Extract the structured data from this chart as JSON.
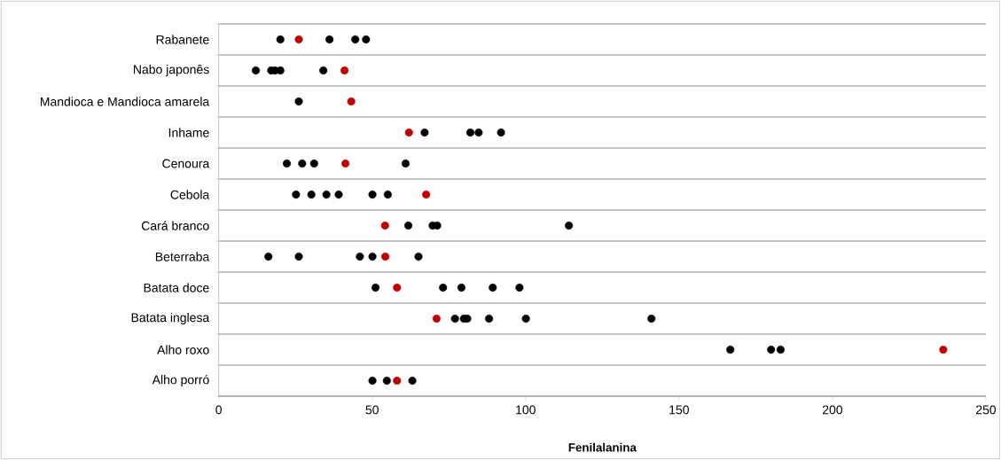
{
  "chart_data": {
    "type": "scatter",
    "orientation": "horizontal",
    "xlabel": "Fenilalanina",
    "categories": [
      "Rabanete",
      "Nabo japonês",
      "Mandioca e Mandioca amarela",
      "Inhame",
      "Cenoura",
      "Cebola",
      "Cará branco",
      "Beterraba",
      "Batata doce",
      "Batata inglesa",
      "Alho roxo",
      "Alho porró"
    ],
    "series": [
      {
        "color": "#000000",
        "values": [
          20.1,
          12.1,
          26.1,
          67.1,
          22.2,
          25.2,
          61.8,
          16.2,
          51.1,
          77.0,
          166.7,
          50.1
        ]
      },
      {
        "color": "#000000",
        "values": [
          36.1,
          17.1,
          null,
          82.0,
          27.2,
          30.2,
          69.7,
          26.1,
          73.1,
          79.9,
          180.0,
          54.8
        ]
      },
      {
        "color": "#000000",
        "values": [
          44.5,
          18.4,
          null,
          84.7,
          31.1,
          35.1,
          71.2,
          46.0,
          79.1,
          81.0,
          183.1,
          63.1
        ]
      },
      {
        "color": "#000000",
        "values": [
          48.0,
          20.1,
          null,
          92.0,
          60.9,
          39.1,
          114.1,
          50.1,
          89.3,
          88.1,
          null,
          null
        ]
      },
      {
        "color": "#000000",
        "values": [
          null,
          34.1,
          null,
          null,
          null,
          50.1,
          null,
          65.1,
          98.0,
          100.1,
          null,
          null
        ]
      },
      {
        "color": "#000000",
        "values": [
          null,
          null,
          null,
          null,
          null,
          55.1,
          null,
          null,
          null,
          141.0,
          null,
          null
        ]
      },
      {
        "color": "#c00000",
        "values": [
          26.1,
          41.0,
          43.2,
          62.0,
          41.3,
          67.6,
          54.2,
          54.3,
          58.1,
          71.0,
          236.1,
          58.1
        ]
      }
    ],
    "xlim": [
      0,
      250
    ],
    "xticks": [
      0,
      50,
      100,
      150,
      200,
      250
    ],
    "grid": "y",
    "marker": "circle"
  }
}
